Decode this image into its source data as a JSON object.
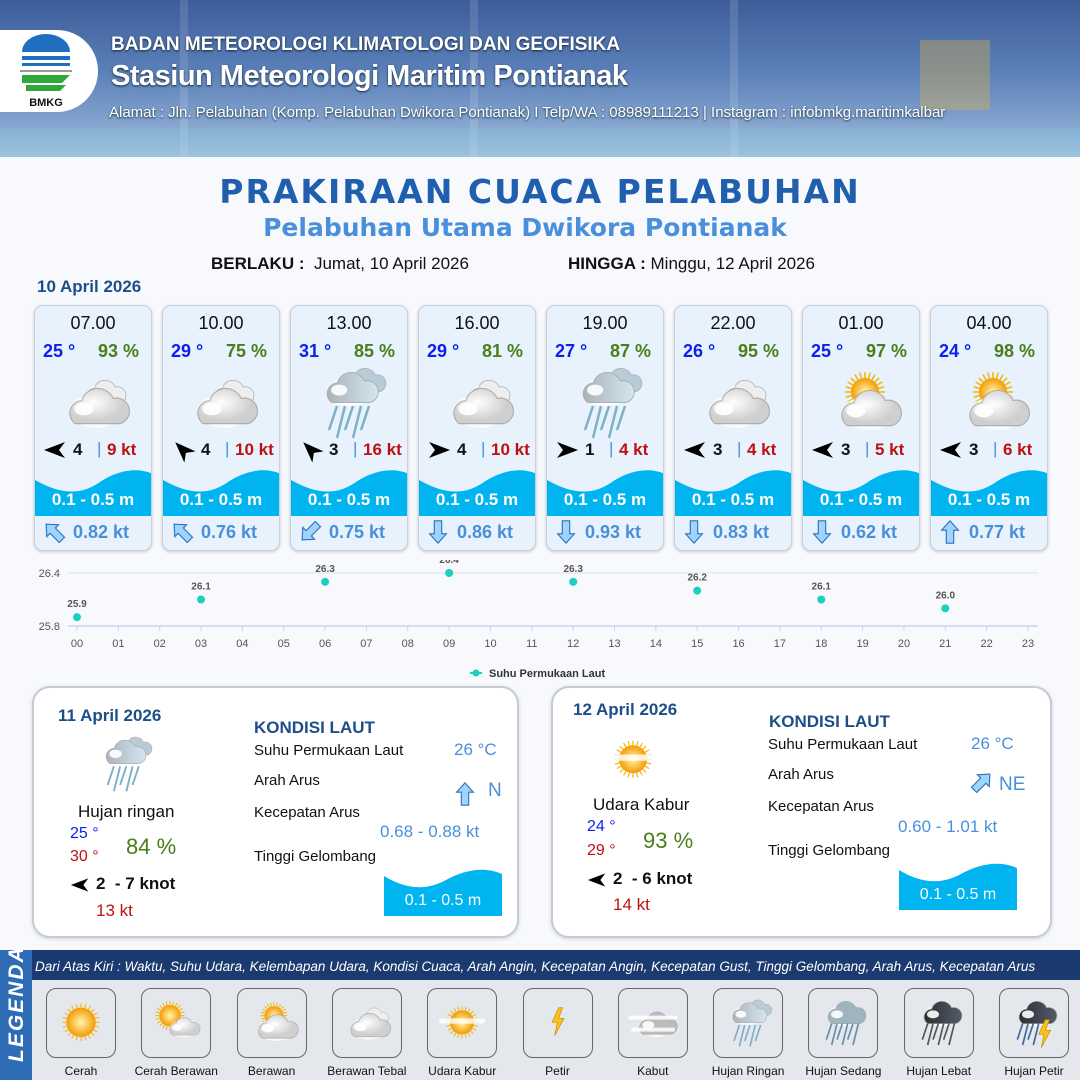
{
  "header": {
    "agency": "BADAN METEOROLOGI KLIMATOLOGI DAN GEOFISIKA",
    "station": "Stasiun Meteorologi Maritim Pontianak",
    "address": "Alamat : Jln. Pelabuhan (Komp. Pelabuhan Dwikora Pontianak) I Telp/WA : 08989111213 | Instagram : infobmkg.maritimkalbar",
    "logo_text": "BMKG"
  },
  "title": "PRAKIRAAN CUACA PELABUHAN",
  "subtitle": "Pelabuhan Utama Dwikora Pontianak",
  "validity": {
    "from_label": "BERLAKU :",
    "from": "Jumat, 10 April 2026",
    "to_label": "HINGGA :",
    "to": "Minggu, 12 April 2026"
  },
  "day1": {
    "date": "10 April 2026",
    "hourly": [
      {
        "time": "07.00",
        "temp": "25 °",
        "hum": "93 %",
        "icon": "berawan-tebal",
        "wind_dir_deg": 270,
        "wind": "4",
        "gust": "9 kt",
        "wave": "0.1 - 0.5 m",
        "current_dir_deg": 315,
        "current": "0.82 kt"
      },
      {
        "time": "10.00",
        "temp": "29 °",
        "hum": "75 %",
        "icon": "berawan-tebal",
        "wind_dir_deg": 315,
        "wind": "4",
        "gust": "10 kt",
        "wave": "0.1 - 0.5 m",
        "current_dir_deg": 315,
        "current": "0.76 kt"
      },
      {
        "time": "13.00",
        "temp": "31 °",
        "hum": "85 %",
        "icon": "hujan-ringan",
        "wind_dir_deg": 315,
        "wind": "3",
        "gust": "16 kt",
        "wave": "0.1 - 0.5 m",
        "current_dir_deg": 225,
        "current": "0.75 kt"
      },
      {
        "time": "16.00",
        "temp": "29 °",
        "hum": "81 %",
        "icon": "berawan-tebal",
        "wind_dir_deg": 90,
        "wind": "4",
        "gust": "10 kt",
        "wave": "0.1 - 0.5 m",
        "current_dir_deg": 180,
        "current": "0.86 kt"
      },
      {
        "time": "19.00",
        "temp": "27 °",
        "hum": "87 %",
        "icon": "hujan-ringan",
        "wind_dir_deg": 90,
        "wind": "1",
        "gust": "4 kt",
        "wave": "0.1 - 0.5 m",
        "current_dir_deg": 180,
        "current": "0.93 kt"
      },
      {
        "time": "22.00",
        "temp": "26 °",
        "hum": "95 %",
        "icon": "berawan-tebal",
        "wind_dir_deg": 270,
        "wind": "3",
        "gust": "4 kt",
        "wave": "0.1 - 0.5 m",
        "current_dir_deg": 180,
        "current": "0.83 kt"
      },
      {
        "time": "01.00",
        "temp": "25 °",
        "hum": "97 %",
        "icon": "berawan",
        "wind_dir_deg": 270,
        "wind": "3",
        "gust": "5 kt",
        "wave": "0.1 - 0.5 m",
        "current_dir_deg": 180,
        "current": "0.62 kt"
      },
      {
        "time": "04.00",
        "temp": "24 °",
        "hum": "98 %",
        "icon": "berawan",
        "wind_dir_deg": 270,
        "wind": "3",
        "gust": "6 kt",
        "wave": "0.1 - 0.5 m",
        "current_dir_deg": 0,
        "current": "0.77 kt"
      }
    ]
  },
  "chart_data": {
    "type": "scatter",
    "series": [
      {
        "name": "Suhu Permukaan Laut",
        "x": [
          "00",
          "03",
          "06",
          "09",
          "12",
          "15",
          "18",
          "21"
        ],
        "values": [
          25.9,
          26.1,
          26.3,
          26.4,
          26.3,
          26.2,
          26.1,
          26.0
        ]
      }
    ],
    "x_ticks": [
      "00",
      "01",
      "02",
      "03",
      "04",
      "05",
      "06",
      "07",
      "08",
      "09",
      "10",
      "11",
      "12",
      "13",
      "14",
      "15",
      "16",
      "17",
      "18",
      "19",
      "20",
      "21",
      "22",
      "23"
    ],
    "y_ticks": [
      "25.8",
      "26.4"
    ],
    "ylim": [
      25.8,
      26.4
    ],
    "grid": true,
    "legend": "bottom",
    "color": "#1ccfc0"
  },
  "days": [
    {
      "date": "11 April 2026",
      "icon": "hujan-ringan",
      "condition": "Hujan ringan",
      "tmin": "25 °",
      "tmax": "30 °",
      "hum": "84 %",
      "wind_dir_deg": 270,
      "wind": "2  - 7 knot",
      "gust": "13 kt",
      "kondisi_title": "KONDISI LAUT",
      "sst_label": "Suhu Permukaan Laut",
      "sst": "26 °C",
      "dir_label": "Arah Arus",
      "current_dir": "N",
      "current_dir_deg": 0,
      "speed_label": "Kecepatan Arus",
      "speed": "0.68 - 0.88 kt",
      "wave_label": "Tinggi Gelombang",
      "wave": "0.1 - 0.5 m"
    },
    {
      "date": "12 April 2026",
      "icon": "udara-kabur",
      "condition": "Udara Kabur",
      "tmin": "24 °",
      "tmax": "29 °",
      "hum": "93 %",
      "wind_dir_deg": 270,
      "wind": "2  - 6 knot",
      "gust": "14 kt",
      "kondisi_title": "KONDISI LAUT",
      "sst_label": "Suhu Permukaan Laut",
      "sst": "26 °C",
      "dir_label": "Arah Arus",
      "current_dir": "NE",
      "current_dir_deg": 45,
      "speed_label": "Kecepatan Arus",
      "speed": "0.60 - 1.01 kt",
      "wave_label": "Tinggi Gelombang",
      "wave": "0.1 - 0.5 m"
    }
  ],
  "legend": {
    "title": "LEGENDA",
    "description": "Dari Atas Kiri : Waktu, Suhu Udara, Kelembapan Udara, Kondisi Cuaca, Arah Angin, Kecepatan Angin, Kecepatan Gust, Tinggi Gelombang, Arah Arus, Kecepatan Arus",
    "items": [
      {
        "label": "Cerah",
        "icon": "cerah"
      },
      {
        "label": "Cerah Berawan",
        "icon": "cerah-berawan"
      },
      {
        "label": "Berawan",
        "icon": "berawan"
      },
      {
        "label": "Berawan Tebal",
        "icon": "berawan-tebal"
      },
      {
        "label": "Udara Kabur",
        "icon": "udara-kabur"
      },
      {
        "label": "Petir",
        "icon": "petir"
      },
      {
        "label": "Kabut",
        "icon": "kabut"
      },
      {
        "label": "Hujan Ringan",
        "icon": "hujan-ringan"
      },
      {
        "label": "Hujan Sedang",
        "icon": "hujan-sedang"
      },
      {
        "label": "Hujan Lebat",
        "icon": "hujan-lebat"
      },
      {
        "label": "Hujan Petir",
        "icon": "hujan-petir"
      }
    ]
  },
  "colors": {
    "title": "#1f5fae",
    "temp": "#0a1ff0",
    "humidity": "#4a7e1a",
    "gust": "#c01010",
    "wave": "#00b4f0",
    "current": "#4a8fdc"
  }
}
